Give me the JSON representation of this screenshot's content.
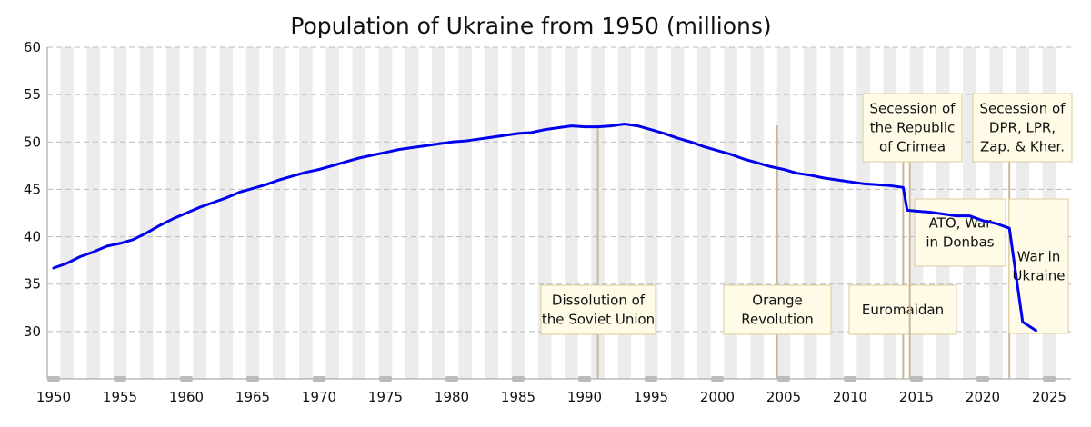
{
  "chart_data": {
    "type": "line",
    "title": "Population of Ukraine from 1950 (millions)",
    "xlabel": "",
    "ylabel": "",
    "xlim": [
      1950,
      2026
    ],
    "ylim": [
      25,
      60
    ],
    "x_ticks": [
      1950,
      1955,
      1960,
      1965,
      1970,
      1975,
      1980,
      1985,
      1990,
      1995,
      2000,
      2005,
      2010,
      2015,
      2020,
      2025
    ],
    "y_ticks": [
      30,
      35,
      40,
      45,
      50,
      55,
      60
    ],
    "grid": "alternating vertical bands by year",
    "line_color": "#0000ee",
    "series": [
      {
        "x": [
          1950,
          1951,
          1952,
          1953,
          1954,
          1955,
          1956,
          1957,
          1958,
          1959,
          1960,
          1961,
          1962,
          1963,
          1964,
          1965,
          1966,
          1967,
          1968,
          1969,
          1970,
          1971,
          1972,
          1973,
          1974,
          1975,
          1976,
          1977,
          1978,
          1979,
          1980,
          1981,
          1982,
          1983,
          1984,
          1985,
          1986,
          1987,
          1988,
          1989,
          1990,
          1991,
          1992,
          1993,
          1994,
          1995,
          1996,
          1997,
          1998,
          1999,
          2000,
          2001,
          2002,
          2003,
          2004,
          2005,
          2006,
          2007,
          2008,
          2009,
          2010,
          2011,
          2012,
          2013,
          2014,
          2014.3,
          2015,
          2016,
          2017,
          2018,
          2019,
          2020,
          2021,
          2022,
          2023,
          2024
        ],
        "values": [
          36.7,
          37.2,
          37.9,
          38.4,
          39.0,
          39.3,
          39.7,
          40.4,
          41.2,
          41.9,
          42.5,
          43.1,
          43.6,
          44.1,
          44.7,
          45.1,
          45.5,
          46.0,
          46.4,
          46.8,
          47.1,
          47.5,
          47.9,
          48.3,
          48.6,
          48.9,
          49.2,
          49.4,
          49.6,
          49.8,
          50.0,
          50.1,
          50.3,
          50.5,
          50.7,
          50.9,
          51.0,
          51.3,
          51.5,
          51.7,
          51.6,
          51.6,
          51.7,
          51.9,
          51.7,
          51.3,
          50.9,
          50.4,
          50.0,
          49.5,
          49.1,
          48.7,
          48.2,
          47.8,
          47.4,
          47.1,
          46.7,
          46.5,
          46.2,
          46.0,
          45.8,
          45.6,
          45.5,
          45.4,
          45.2,
          42.8,
          42.7,
          42.6,
          42.4,
          42.2,
          42.2,
          41.7,
          41.4,
          40.9,
          31.0,
          30.1
        ]
      }
    ],
    "annotations": [
      {
        "year": 1991,
        "lines": [
          "Dissolution of",
          "the Soviet Union"
        ]
      },
      {
        "year": 2004.5,
        "lines": [
          "Orange",
          "Revolution"
        ]
      },
      {
        "year": 2014,
        "lines": [
          "Euromaidan"
        ]
      },
      {
        "year": 2014.5,
        "lines": [
          "Secession of",
          "the Republic",
          "of Crimea"
        ]
      },
      {
        "year": 2014.7,
        "lines": [
          "ATO, War",
          "in Donbas"
        ]
      },
      {
        "year": 2022,
        "lines": [
          "Secession of",
          "DPR, LPR,",
          "Zap. & Kher."
        ]
      },
      {
        "year": 2022.3,
        "lines": [
          "War in",
          "Ukraine"
        ]
      }
    ]
  }
}
